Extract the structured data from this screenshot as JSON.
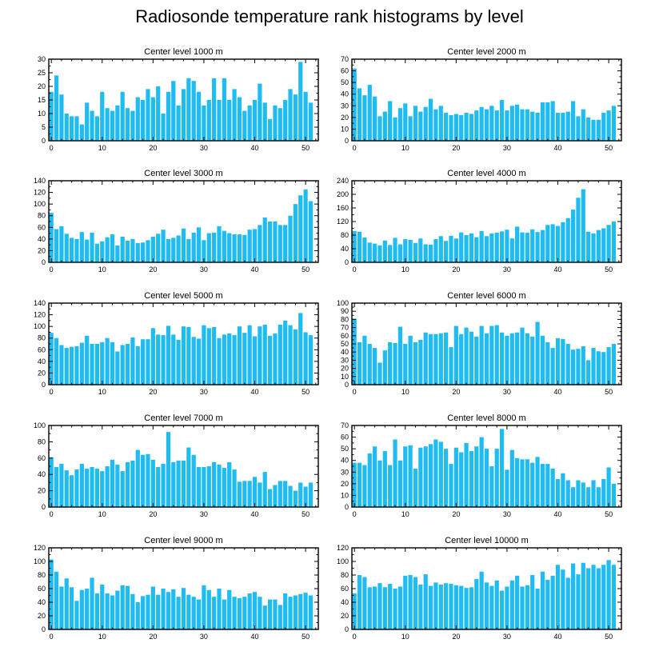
{
  "title": "Radiosonde temperature rank histograms by level",
  "bar_color": "#1fbcf2",
  "chart_data": [
    {
      "type": "bar",
      "title": "Center level 1000 m",
      "xlim": [
        -0.5,
        52.5
      ],
      "ylim": [
        0,
        30
      ],
      "xticks": [
        0,
        10,
        20,
        30,
        40,
        50
      ],
      "yticks": [
        0,
        5,
        10,
        15,
        20,
        25,
        30
      ],
      "values": [
        18,
        24,
        17,
        10,
        9,
        9,
        6,
        14,
        11,
        9,
        18,
        12,
        11,
        13,
        18,
        12,
        11,
        16,
        15,
        19,
        16,
        20,
        10,
        18,
        22,
        13,
        19,
        23,
        22,
        18,
        13,
        15,
        23,
        15,
        23,
        15,
        19,
        16,
        11,
        13,
        15,
        21,
        14,
        8,
        13,
        12,
        15,
        19,
        17,
        29,
        18,
        14
      ]
    },
    {
      "type": "bar",
      "title": "Center level 2000 m",
      "xlim": [
        -0.5,
        52.5
      ],
      "ylim": [
        0,
        70
      ],
      "xticks": [
        0,
        10,
        20,
        30,
        40,
        50
      ],
      "yticks": [
        0,
        10,
        20,
        30,
        40,
        50,
        60,
        70
      ],
      "values": [
        62,
        45,
        39,
        48,
        38,
        21,
        25,
        34,
        20,
        28,
        32,
        21,
        30,
        25,
        29,
        36,
        27,
        30,
        24,
        22,
        23,
        22,
        24,
        23,
        26,
        29,
        27,
        30,
        26,
        35,
        26,
        30,
        31,
        27,
        27,
        25,
        24,
        33,
        33,
        34,
        24,
        24,
        25,
        34,
        21,
        27,
        20,
        18,
        18,
        24,
        26,
        30
      ]
    },
    {
      "type": "bar",
      "title": "Center level 3000 m",
      "xlim": [
        -0.5,
        52.5
      ],
      "ylim": [
        0,
        140
      ],
      "xticks": [
        0,
        10,
        20,
        30,
        40,
        50
      ],
      "yticks": [
        0,
        20,
        40,
        60,
        80,
        100,
        120,
        140
      ],
      "values": [
        85,
        57,
        62,
        49,
        42,
        40,
        52,
        39,
        51,
        32,
        36,
        43,
        48,
        29,
        44,
        37,
        40,
        33,
        34,
        38,
        44,
        49,
        56,
        40,
        42,
        46,
        58,
        40,
        51,
        60,
        38,
        50,
        51,
        62,
        54,
        50,
        48,
        48,
        47,
        56,
        57,
        64,
        77,
        70,
        70,
        64,
        64,
        80,
        100,
        115,
        125,
        105
      ]
    },
    {
      "type": "bar",
      "title": "Center level 4000 m",
      "xlim": [
        -0.5,
        52.5
      ],
      "ylim": [
        0,
        240
      ],
      "xticks": [
        0,
        10,
        20,
        30,
        40,
        50
      ],
      "yticks": [
        0,
        40,
        80,
        120,
        160,
        200,
        240
      ],
      "values": [
        92,
        90,
        73,
        58,
        55,
        50,
        64,
        51,
        72,
        53,
        68,
        66,
        57,
        70,
        53,
        52,
        68,
        77,
        63,
        78,
        70,
        88,
        80,
        85,
        74,
        92,
        77,
        85,
        87,
        91,
        96,
        70,
        105,
        88,
        87,
        97,
        89,
        95,
        110,
        112,
        107,
        118,
        130,
        155,
        190,
        215,
        90,
        85,
        95,
        100,
        110,
        120
      ]
    },
    {
      "type": "bar",
      "title": "Center level 5000 m",
      "xlim": [
        -0.5,
        52.5
      ],
      "ylim": [
        0,
        140
      ],
      "xticks": [
        0,
        10,
        20,
        30,
        40,
        50
      ],
      "yticks": [
        0,
        20,
        40,
        60,
        80,
        100,
        120,
        140
      ],
      "values": [
        89,
        80,
        68,
        63,
        65,
        66,
        72,
        84,
        70,
        70,
        73,
        80,
        73,
        57,
        68,
        70,
        81,
        66,
        78,
        78,
        97,
        86,
        85,
        101,
        86,
        77,
        100,
        99,
        82,
        79,
        102,
        97,
        99,
        80,
        86,
        88,
        85,
        100,
        89,
        102,
        83,
        100,
        103,
        84,
        88,
        103,
        110,
        102,
        95,
        123,
        90,
        85
      ]
    },
    {
      "type": "bar",
      "title": "Center level 6000 m",
      "xlim": [
        -0.5,
        52.5
      ],
      "ylim": [
        0,
        100
      ],
      "xticks": [
        0,
        10,
        20,
        30,
        40,
        50
      ],
      "yticks": [
        0,
        10,
        20,
        30,
        40,
        50,
        60,
        70,
        80,
        90,
        100
      ],
      "values": [
        81,
        52,
        60,
        50,
        45,
        27,
        42,
        52,
        51,
        71,
        50,
        60,
        52,
        55,
        64,
        62,
        62,
        63,
        64,
        46,
        72,
        62,
        70,
        65,
        59,
        72,
        63,
        72,
        73,
        64,
        60,
        63,
        64,
        70,
        63,
        59,
        77,
        60,
        52,
        45,
        57,
        56,
        50,
        43,
        44,
        47,
        30,
        45,
        41,
        40,
        46,
        50
      ]
    },
    {
      "type": "bar",
      "title": "Center level 7000 m",
      "xlim": [
        -0.5,
        52.5
      ],
      "ylim": [
        0,
        100
      ],
      "xticks": [
        0,
        10,
        20,
        30,
        40,
        50
      ],
      "yticks": [
        0,
        20,
        40,
        60,
        80,
        100
      ],
      "values": [
        61,
        49,
        53,
        45,
        39,
        46,
        53,
        47,
        49,
        47,
        44,
        50,
        58,
        52,
        44,
        55,
        57,
        70,
        64,
        65,
        58,
        49,
        53,
        92,
        55,
        57,
        57,
        73,
        64,
        49,
        49,
        50,
        55,
        52,
        48,
        55,
        46,
        31,
        32,
        32,
        37,
        30,
        43,
        22,
        27,
        32,
        32,
        26,
        20,
        30,
        25,
        30
      ]
    },
    {
      "type": "bar",
      "title": "Center level 8000 m",
      "xlim": [
        -0.5,
        52.5
      ],
      "ylim": [
        0,
        70
      ],
      "xticks": [
        0,
        10,
        20,
        30,
        40,
        50
      ],
      "yticks": [
        0,
        10,
        20,
        30,
        40,
        50,
        60,
        70
      ],
      "values": [
        38,
        38,
        36,
        46,
        52,
        40,
        48,
        36,
        58,
        40,
        52,
        53,
        33,
        51,
        52,
        54,
        58,
        56,
        50,
        37,
        51,
        47,
        55,
        48,
        52,
        60,
        50,
        35,
        50,
        67,
        32,
        49,
        42,
        41,
        41,
        38,
        43,
        37,
        37,
        33,
        24,
        29,
        23,
        17,
        23,
        21,
        17,
        23,
        17,
        24,
        34,
        20
      ]
    },
    {
      "type": "bar",
      "title": "Center level 9000 m",
      "xlim": [
        -0.5,
        52.5
      ],
      "ylim": [
        0,
        120
      ],
      "xticks": [
        0,
        10,
        20,
        30,
        40,
        50
      ],
      "yticks": [
        0,
        20,
        40,
        60,
        80,
        100,
        120
      ],
      "values": [
        103,
        85,
        63,
        75,
        62,
        42,
        58,
        60,
        76,
        53,
        66,
        53,
        50,
        57,
        65,
        64,
        52,
        40,
        49,
        51,
        63,
        51,
        60,
        55,
        59,
        48,
        61,
        51,
        48,
        44,
        65,
        58,
        48,
        60,
        44,
        58,
        48,
        46,
        48,
        53,
        55,
        48,
        35,
        44,
        44,
        36,
        53,
        48,
        50,
        52,
        54,
        50
      ]
    },
    {
      "type": "bar",
      "title": "Center level 10000 m",
      "xlim": [
        -0.5,
        52.5
      ],
      "ylim": [
        0,
        120
      ],
      "xticks": [
        0,
        10,
        20,
        30,
        40,
        50
      ],
      "yticks": [
        0,
        20,
        40,
        60,
        80,
        100,
        120
      ],
      "values": [
        53,
        80,
        77,
        62,
        63,
        68,
        62,
        67,
        60,
        63,
        79,
        80,
        77,
        66,
        81,
        64,
        69,
        66,
        68,
        67,
        65,
        64,
        61,
        62,
        74,
        85,
        69,
        64,
        72,
        57,
        63,
        72,
        79,
        63,
        65,
        80,
        60,
        85,
        73,
        79,
        95,
        88,
        76,
        97,
        81,
        98,
        90,
        95,
        90,
        95,
        102,
        95
      ]
    }
  ]
}
